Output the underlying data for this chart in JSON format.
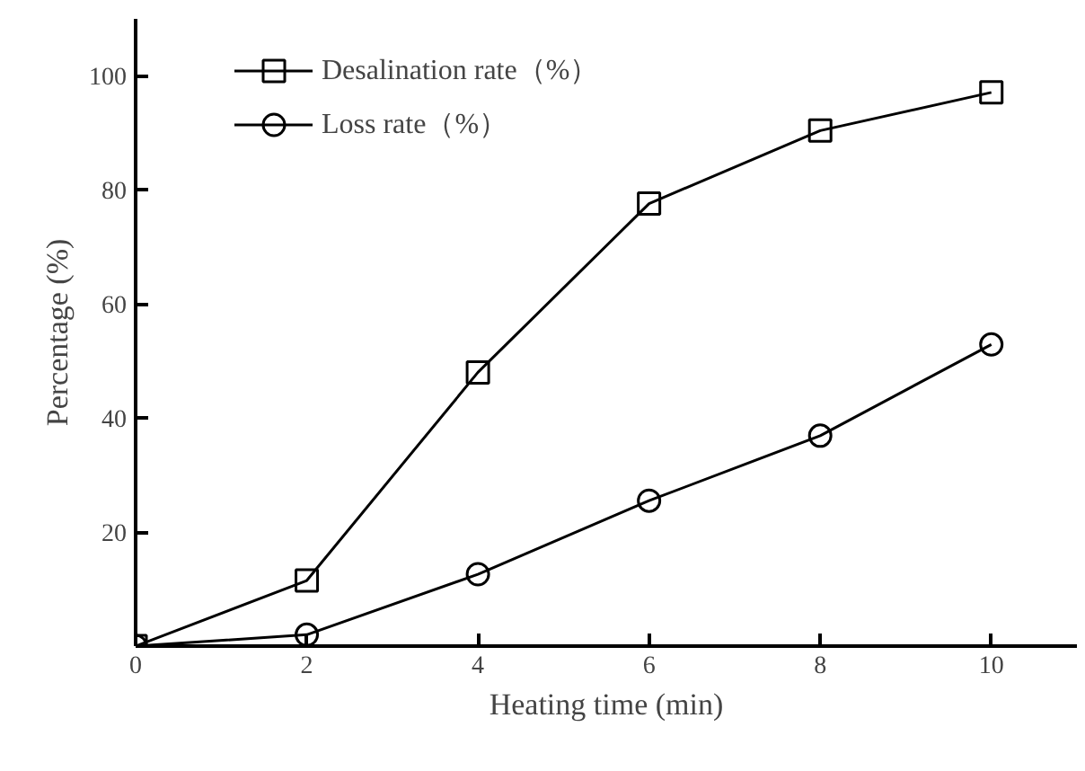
{
  "chart_data": {
    "type": "line",
    "xlabel": "Heating time (min)",
    "ylabel": "Percentage (%)",
    "x": [
      0,
      2,
      4,
      6,
      8,
      10
    ],
    "series": [
      {
        "name": "Desalination rate（%）",
        "color": "#000000",
        "marker": "square",
        "values": [
          0,
          11.5,
          48,
          77.6,
          90.4,
          97.1
        ]
      },
      {
        "name": "Loss rate（%）",
        "color": "#000000",
        "marker": "circle",
        "values": [
          0,
          2,
          12.6,
          25.5,
          36.9,
          52.9
        ]
      }
    ],
    "xlim": [
      0,
      11
    ],
    "ylim": [
      0,
      110
    ],
    "xticks": [
      0,
      2,
      4,
      6,
      8,
      10
    ],
    "yticks": [
      20,
      40,
      60,
      80,
      100
    ],
    "grid": false,
    "legend": "top left",
    "line_style": "solid"
  }
}
